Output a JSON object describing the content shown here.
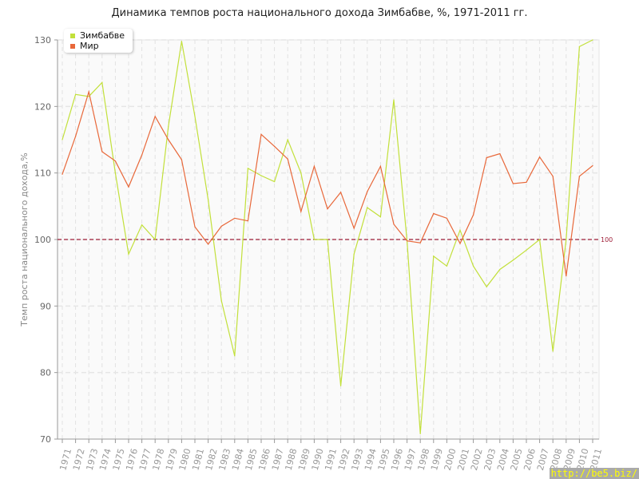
{
  "chart_data": {
    "type": "line",
    "title": "Динамика темпов роста национального дохода Зимбабве, %, 1971-2011 гг.",
    "xlabel": "",
    "ylabel": "Темп роста национального дохода,%",
    "ylim": [
      70,
      130
    ],
    "yticks": [
      70,
      80,
      90,
      100,
      110,
      120,
      130
    ],
    "reference_line": {
      "value": 100,
      "label": "100",
      "color": "#a0203a"
    },
    "legend_position": "top-left",
    "x": [
      1971,
      1972,
      1973,
      1974,
      1975,
      1976,
      1977,
      1978,
      1979,
      1980,
      1981,
      1982,
      1983,
      1984,
      1985,
      1986,
      1987,
      1988,
      1989,
      1990,
      1991,
      1992,
      1993,
      1994,
      1995,
      1996,
      1997,
      1998,
      1999,
      2000,
      2001,
      2002,
      2003,
      2004,
      2005,
      2006,
      2007,
      2008,
      2009,
      2010,
      2011
    ],
    "series": [
      {
        "name": "Зимбабве",
        "color": "#c2e03a",
        "values": [
          115,
          121.8,
          121.5,
          123.6,
          110,
          97.8,
          102.2,
          100,
          117,
          129.8,
          118.5,
          106,
          90.8,
          82.5,
          110.7,
          109.6,
          108.7,
          115,
          110,
          100,
          100,
          78,
          97.8,
          104.8,
          103.4,
          121,
          99.8,
          70.8,
          97.5,
          96,
          101.4,
          96,
          92.9,
          95.5,
          96.9,
          98.4,
          100,
          83.2,
          100,
          129,
          130
        ]
      },
      {
        "name": "Мир",
        "color": "#e8683a",
        "values": [
          109.8,
          115.5,
          122.2,
          113.2,
          111.8,
          107.9,
          112.7,
          118.5,
          115,
          112,
          101.9,
          99.3,
          102,
          103.2,
          102.8,
          115.8,
          114,
          112.1,
          104.2,
          111,
          104.6,
          107.1,
          101.7,
          107.2,
          111,
          102.3,
          99.8,
          99.5,
          103.9,
          103.2,
          99.4,
          103.7,
          112.3,
          112.9,
          108.4,
          108.6,
          112.4,
          109.5,
          94.5,
          109.5,
          111.1
        ]
      }
    ]
  },
  "watermark": "http://be5.biz/"
}
